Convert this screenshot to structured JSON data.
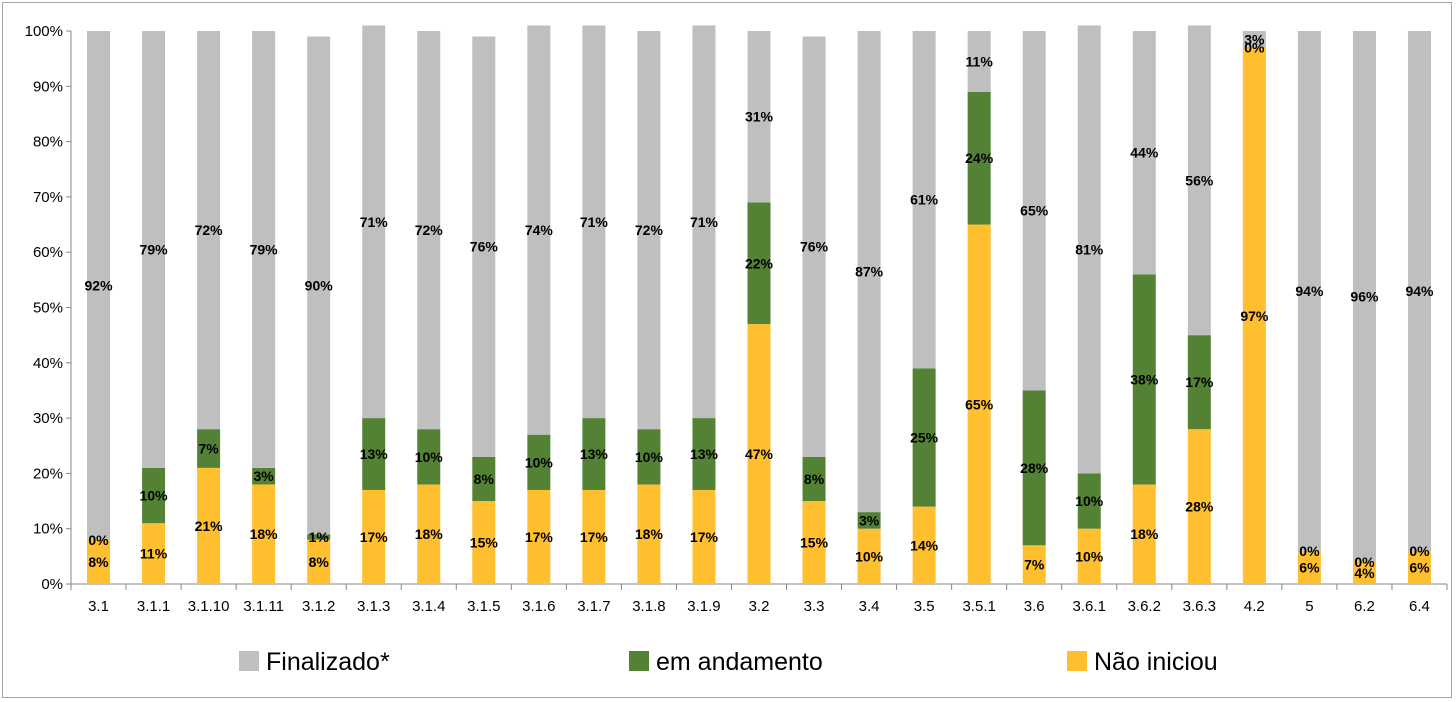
{
  "chart_data": {
    "type": "bar",
    "stacked": true,
    "percent_stacked": true,
    "categories": [
      "3.1",
      "3.1.1",
      "3.1.10",
      "3.1.11",
      "3.1.2",
      "3.1.3",
      "3.1.4",
      "3.1.5",
      "3.1.6",
      "3.1.7",
      "3.1.8",
      "3.1.9",
      "3.2",
      "3.3",
      "3.4",
      "3.5",
      "3.5.1",
      "3.6",
      "3.6.1",
      "3.6.2",
      "3.6.3",
      "4.2",
      "5",
      "6.2",
      "6.4"
    ],
    "series": [
      {
        "name": "Não iniciou",
        "color": "#FFBF2F",
        "values": [
          8,
          11,
          21,
          18,
          8,
          17,
          18,
          15,
          17,
          17,
          18,
          17,
          47,
          15,
          10,
          14,
          65,
          7,
          10,
          18,
          28,
          97,
          6,
          4,
          6
        ]
      },
      {
        "name": "em andamento",
        "color": "#548235",
        "values": [
          0,
          10,
          7,
          3,
          1,
          13,
          10,
          8,
          10,
          13,
          10,
          13,
          22,
          8,
          3,
          25,
          24,
          28,
          10,
          38,
          17,
          0,
          0,
          0,
          0
        ]
      },
      {
        "name": "Finalizado*",
        "color": "#BFBFBF",
        "values": [
          92,
          79,
          72,
          79,
          90,
          71,
          72,
          76,
          74,
          71,
          72,
          71,
          31,
          76,
          87,
          61,
          11,
          65,
          81,
          44,
          56,
          3,
          94,
          96,
          94
        ]
      }
    ],
    "legend_order": [
      "Finalizado*",
      "em andamento",
      "Não iniciou"
    ],
    "y_ticks": [
      "0%",
      "10%",
      "20%",
      "30%",
      "40%",
      "50%",
      "60%",
      "70%",
      "80%",
      "90%",
      "100%"
    ],
    "ylim": [
      0,
      100
    ],
    "grid": false,
    "legend_position": "bottom",
    "title": "",
    "xlabel": "",
    "ylabel": ""
  }
}
